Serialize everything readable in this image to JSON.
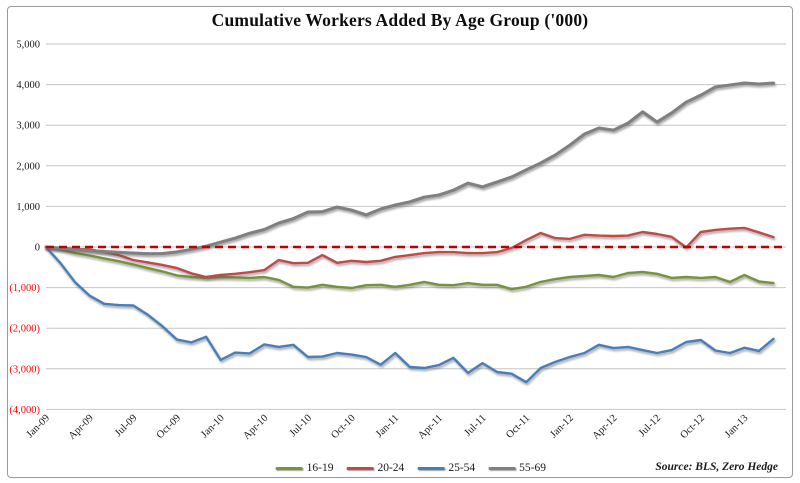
{
  "footer": {
    "source": "Source: BLS, Zero Hedge"
  },
  "chart_data": {
    "type": "line",
    "title": "Cumulative Workers Added By Age Group ('000)",
    "xlabel": "",
    "ylabel": "",
    "ylim": [
      -4000,
      5000
    ],
    "y_tick_values": [
      5000,
      4000,
      3000,
      2000,
      1000,
      0,
      -1000,
      -2000,
      -3000,
      -4000
    ],
    "y_tick_style": "thousands separators; negative values in parentheses and red",
    "grid": "horizontal",
    "gridline_color": "#c6c6c6",
    "zero_line": {
      "value": 0,
      "color": "#c00000",
      "style": "dashed"
    },
    "negative_label_color": "#ff0000",
    "legend_position": "bottom-center",
    "x": [
      "Jan-09",
      "Feb-09",
      "Mar-09",
      "Apr-09",
      "May-09",
      "Jun-09",
      "Jul-09",
      "Aug-09",
      "Sep-09",
      "Oct-09",
      "Nov-09",
      "Dec-09",
      "Jan-10",
      "Feb-10",
      "Mar-10",
      "Apr-10",
      "May-10",
      "Jun-10",
      "Jul-10",
      "Aug-10",
      "Sep-10",
      "Oct-10",
      "Nov-10",
      "Dec-10",
      "Jan-11",
      "Feb-11",
      "Mar-11",
      "Apr-11",
      "May-11",
      "Jun-11",
      "Jul-11",
      "Aug-11",
      "Sep-11",
      "Oct-11",
      "Nov-11",
      "Dec-11",
      "Jan-12",
      "Feb-12",
      "Mar-12",
      "Apr-12",
      "May-12",
      "Jun-12",
      "Jul-12",
      "Aug-12",
      "Sep-12",
      "Oct-12",
      "Nov-12",
      "Dec-12",
      "Jan-13",
      "Feb-13",
      "Mar-13"
    ],
    "series": [
      {
        "name": "16-19",
        "color": "#77933c",
        "values": [
          0,
          -60,
          -150,
          -210,
          -280,
          -350,
          -430,
          -520,
          -600,
          -700,
          -740,
          -760,
          -740,
          -750,
          -760,
          -740,
          -810,
          -980,
          -1000,
          -930,
          -980,
          -1010,
          -940,
          -930,
          -980,
          -930,
          -860,
          -930,
          -940,
          -890,
          -930,
          -930,
          -1040,
          -980,
          -860,
          -790,
          -740,
          -715,
          -690,
          -740,
          -640,
          -615,
          -660,
          -760,
          -740,
          -760,
          -740,
          -860,
          -690,
          -850,
          -890
        ]
      },
      {
        "name": "20-24",
        "color": "#be4b48",
        "values": [
          0,
          -20,
          -50,
          -60,
          -120,
          -200,
          -320,
          -380,
          -440,
          -520,
          -650,
          -740,
          -690,
          -660,
          -620,
          -570,
          -320,
          -400,
          -390,
          -200,
          -390,
          -340,
          -370,
          -340,
          -245,
          -200,
          -150,
          -125,
          -125,
          -150,
          -150,
          -125,
          -25,
          170,
          345,
          220,
          200,
          300,
          280,
          270,
          280,
          370,
          320,
          250,
          -10,
          370,
          420,
          450,
          470,
          360,
          245
        ]
      },
      {
        "name": "25-54",
        "color": "#4a7ebb",
        "values": [
          0,
          -400,
          -870,
          -1200,
          -1400,
          -1430,
          -1440,
          -1670,
          -1950,
          -2280,
          -2350,
          -2210,
          -2780,
          -2600,
          -2620,
          -2400,
          -2460,
          -2410,
          -2710,
          -2700,
          -2610,
          -2650,
          -2710,
          -2900,
          -2610,
          -2955,
          -2980,
          -2910,
          -2730,
          -3100,
          -2860,
          -3080,
          -3120,
          -3330,
          -2980,
          -2830,
          -2710,
          -2610,
          -2410,
          -2490,
          -2460,
          -2540,
          -2610,
          -2540,
          -2340,
          -2290,
          -2550,
          -2610,
          -2480,
          -2560,
          -2260
        ]
      },
      {
        "name": "55-69",
        "color": "#808080",
        "values": [
          0,
          -30,
          -60,
          -90,
          -110,
          -130,
          -150,
          -165,
          -160,
          -120,
          -60,
          20,
          120,
          220,
          340,
          430,
          590,
          700,
          860,
          870,
          985,
          910,
          790,
          935,
          1035,
          1110,
          1230,
          1280,
          1400,
          1575,
          1480,
          1600,
          1725,
          1900,
          2070,
          2265,
          2510,
          2780,
          2930,
          2880,
          3050,
          3330,
          3080,
          3300,
          3570,
          3740,
          3940,
          3990,
          4040,
          4015,
          4040
        ]
      }
    ]
  }
}
